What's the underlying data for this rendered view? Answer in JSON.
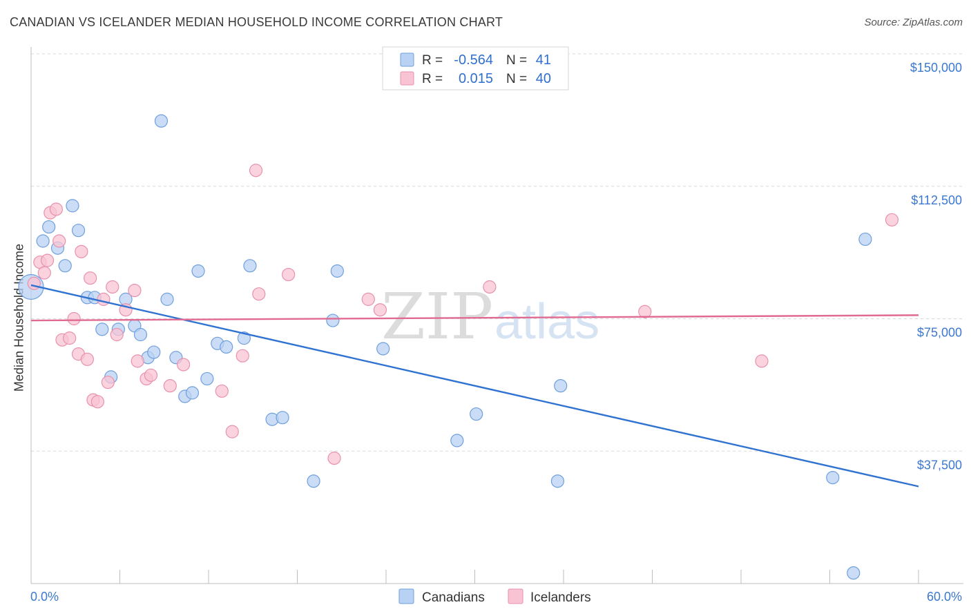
{
  "title": "CANADIAN VS ICELANDER MEDIAN HOUSEHOLD INCOME CORRELATION CHART",
  "source": "Source: ZipAtlas.com",
  "colors": {
    "canadians_fill": "#b9d1f3",
    "canadians_stroke": "#6e9fde",
    "canadians_line": "#2f72d2",
    "icelanders_fill": "#f8c4d4",
    "icelanders_stroke": "#e891ac",
    "icelanders_line": "#e06a92",
    "tick_text": "#3b78cf",
    "grid": "#d8d8d8"
  },
  "legend": {
    "rows": [
      {
        "r_label": "R =",
        "r_value": "-0.564",
        "n_label": "N =",
        "n_value": "41"
      },
      {
        "r_label": "R =",
        "r_value": "0.015",
        "n_label": "N =",
        "n_value": "40"
      }
    ]
  },
  "watermark": {
    "zip": "ZIP",
    "atlas": "atlas"
  },
  "chart_data": {
    "type": "scatter",
    "title": "CANADIAN VS ICELANDER MEDIAN HOUSEHOLD INCOME CORRELATION CHART",
    "xlabel": "",
    "ylabel": "Median Household Income",
    "xlim": [
      0,
      60
    ],
    "ylim": [
      0,
      150000
    ],
    "x_tick_labels": [
      "0.0%",
      "60.0%"
    ],
    "y_ticks": [
      37500,
      75000,
      112500,
      150000
    ],
    "y_tick_labels": [
      "$37,500",
      "$75,000",
      "$112,500",
      "$150,000"
    ],
    "grid": true,
    "legend_position": "top-center",
    "series": [
      {
        "name": "Canadians",
        "trend": {
          "x": [
            0,
            60
          ],
          "y": [
            84500,
            27500
          ]
        },
        "points": [
          {
            "x": 0.0,
            "y": 84000,
            "big": true
          },
          {
            "x": 0.8,
            "y": 97000
          },
          {
            "x": 1.2,
            "y": 101000
          },
          {
            "x": 1.8,
            "y": 95000
          },
          {
            "x": 2.3,
            "y": 90000
          },
          {
            "x": 2.8,
            "y": 107000
          },
          {
            "x": 3.2,
            "y": 100000
          },
          {
            "x": 3.8,
            "y": 81000
          },
          {
            "x": 4.3,
            "y": 81000
          },
          {
            "x": 4.8,
            "y": 72000
          },
          {
            "x": 5.4,
            "y": 58500
          },
          {
            "x": 5.9,
            "y": 72000
          },
          {
            "x": 6.4,
            "y": 80500
          },
          {
            "x": 7.0,
            "y": 73000
          },
          {
            "x": 7.4,
            "y": 70500
          },
          {
            "x": 7.9,
            "y": 64000
          },
          {
            "x": 8.3,
            "y": 65500
          },
          {
            "x": 8.8,
            "y": 131000
          },
          {
            "x": 9.2,
            "y": 80500
          },
          {
            "x": 9.8,
            "y": 64000
          },
          {
            "x": 10.4,
            "y": 53000
          },
          {
            "x": 10.9,
            "y": 54000
          },
          {
            "x": 11.3,
            "y": 88500
          },
          {
            "x": 11.9,
            "y": 58000
          },
          {
            "x": 12.6,
            "y": 68000
          },
          {
            "x": 13.2,
            "y": 67000
          },
          {
            "x": 14.4,
            "y": 69500
          },
          {
            "x": 14.8,
            "y": 90000
          },
          {
            "x": 16.3,
            "y": 46500
          },
          {
            "x": 17.0,
            "y": 47000
          },
          {
            "x": 19.1,
            "y": 29000
          },
          {
            "x": 20.4,
            "y": 74500
          },
          {
            "x": 20.7,
            "y": 88500
          },
          {
            "x": 23.8,
            "y": 66500
          },
          {
            "x": 28.8,
            "y": 40500
          },
          {
            "x": 30.1,
            "y": 48000
          },
          {
            "x": 35.6,
            "y": 29000
          },
          {
            "x": 35.8,
            "y": 56000
          },
          {
            "x": 54.2,
            "y": 30000
          },
          {
            "x": 56.4,
            "y": 97500
          },
          {
            "x": 55.6,
            "y": 3000
          }
        ]
      },
      {
        "name": "Icelanders",
        "trend": {
          "x": [
            0,
            60
          ],
          "y": [
            74500,
            76000
          ]
        },
        "points": [
          {
            "x": 0.2,
            "y": 85000
          },
          {
            "x": 0.6,
            "y": 91000
          },
          {
            "x": 0.9,
            "y": 88000
          },
          {
            "x": 1.1,
            "y": 91500
          },
          {
            "x": 1.3,
            "y": 105000
          },
          {
            "x": 1.7,
            "y": 106000
          },
          {
            "x": 1.9,
            "y": 97000
          },
          {
            "x": 2.1,
            "y": 69000
          },
          {
            "x": 2.6,
            "y": 69500
          },
          {
            "x": 2.9,
            "y": 75000
          },
          {
            "x": 3.2,
            "y": 65000
          },
          {
            "x": 3.4,
            "y": 94000
          },
          {
            "x": 3.8,
            "y": 63500
          },
          {
            "x": 4.0,
            "y": 86500
          },
          {
            "x": 4.2,
            "y": 52000
          },
          {
            "x": 4.5,
            "y": 51500
          },
          {
            "x": 4.9,
            "y": 80500
          },
          {
            "x": 5.2,
            "y": 57000
          },
          {
            "x": 5.5,
            "y": 84000
          },
          {
            "x": 5.8,
            "y": 70500
          },
          {
            "x": 6.4,
            "y": 77500
          },
          {
            "x": 7.0,
            "y": 83000
          },
          {
            "x": 7.2,
            "y": 63000
          },
          {
            "x": 7.8,
            "y": 58000
          },
          {
            "x": 8.1,
            "y": 59000
          },
          {
            "x": 9.4,
            "y": 56000
          },
          {
            "x": 10.3,
            "y": 62000
          },
          {
            "x": 12.9,
            "y": 54500
          },
          {
            "x": 13.6,
            "y": 43000
          },
          {
            "x": 14.3,
            "y": 64500
          },
          {
            "x": 15.2,
            "y": 117000
          },
          {
            "x": 15.4,
            "y": 82000
          },
          {
            "x": 17.4,
            "y": 87500
          },
          {
            "x": 20.5,
            "y": 35500
          },
          {
            "x": 22.8,
            "y": 80500
          },
          {
            "x": 23.6,
            "y": 77500
          },
          {
            "x": 31.0,
            "y": 84000
          },
          {
            "x": 41.5,
            "y": 77000
          },
          {
            "x": 49.4,
            "y": 63000
          },
          {
            "x": 58.2,
            "y": 103000
          }
        ]
      }
    ]
  }
}
